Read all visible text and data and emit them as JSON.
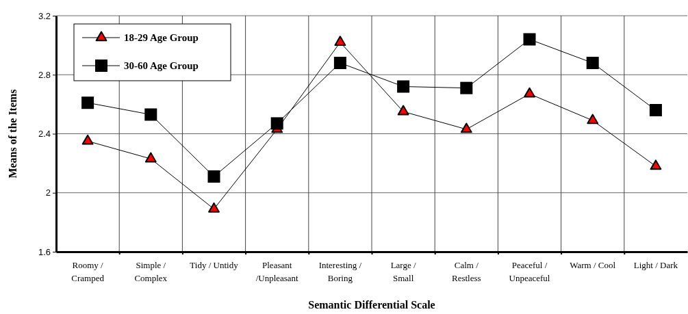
{
  "chart_data": {
    "type": "line",
    "xlabel": "Semantic Differential Scale",
    "ylabel": "Means of the Items",
    "categories": [
      "Roomy /\nCramped",
      "Simple /\nComplex",
      "Tidy / Untidy",
      "Pleasant\n/Unpleasant",
      "Interesting /\nBoring",
      "Large /\nSmall",
      "Calm /\nRestless",
      "Peaceful /\nUnpeaceful",
      "Warm / Cool",
      "Light / Dark"
    ],
    "series": [
      {
        "name": "18-29 Age Group",
        "color": "#ff0000",
        "marker": "triangle",
        "values": [
          2.35,
          2.23,
          1.89,
          2.43,
          3.02,
          2.55,
          2.43,
          2.67,
          2.49,
          2.18
        ]
      },
      {
        "name": "30-60 Age Group",
        "color": "#000000",
        "marker": "square",
        "values": [
          2.61,
          2.53,
          2.11,
          2.47,
          2.88,
          2.72,
          2.71,
          3.04,
          2.88,
          2.56
        ]
      }
    ],
    "ylim": [
      1.6,
      3.2
    ],
    "yticks": [
      {
        "value": 1.6,
        "label": "1.6"
      },
      {
        "value": 2,
        "label": "2"
      },
      {
        "value": 2.4,
        "label": "2.4"
      },
      {
        "value": 2.8,
        "label": "2.8"
      },
      {
        "value": 3.2,
        "label": "3.2"
      }
    ],
    "grid": true,
    "legend": "top left",
    "line_style": "solid"
  }
}
